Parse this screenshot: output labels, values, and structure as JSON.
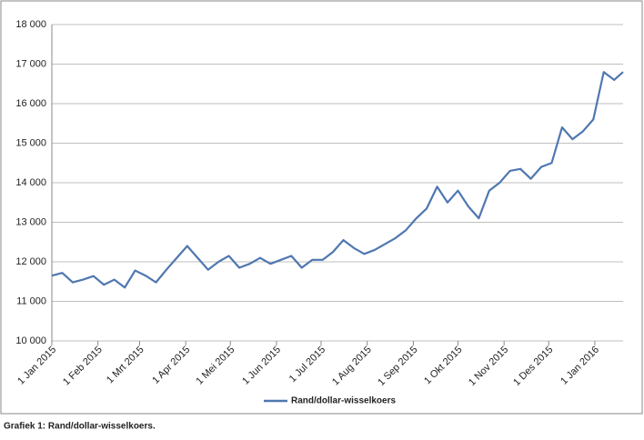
{
  "chart_data": {
    "type": "line",
    "x": [
      "2015-01-01",
      "2015-01-08",
      "2015-01-15",
      "2015-01-22",
      "2015-01-29",
      "2015-02-05",
      "2015-02-12",
      "2015-02-19",
      "2015-02-26",
      "2015-03-05",
      "2015-03-12",
      "2015-03-19",
      "2015-03-26",
      "2015-04-02",
      "2015-04-09",
      "2015-04-16",
      "2015-04-23",
      "2015-04-30",
      "2015-05-07",
      "2015-05-14",
      "2015-05-21",
      "2015-05-28",
      "2015-06-04",
      "2015-06-11",
      "2015-06-18",
      "2015-06-25",
      "2015-07-02",
      "2015-07-09",
      "2015-07-16",
      "2015-07-23",
      "2015-07-30",
      "2015-08-06",
      "2015-08-13",
      "2015-08-20",
      "2015-08-27",
      "2015-09-03",
      "2015-09-10",
      "2015-09-17",
      "2015-09-24",
      "2015-10-01",
      "2015-10-08",
      "2015-10-15",
      "2015-10-22",
      "2015-10-29",
      "2015-11-05",
      "2015-11-12",
      "2015-11-19",
      "2015-11-26",
      "2015-12-03",
      "2015-12-10",
      "2015-12-17",
      "2015-12-24",
      "2015-12-31",
      "2016-01-07",
      "2016-01-14",
      "2016-01-20"
    ],
    "series": [
      {
        "name": "Rand/dollar-wisselkoers",
        "color": "#4f77b0",
        "values": [
          11650,
          11720,
          11480,
          11550,
          11640,
          11420,
          11550,
          11350,
          11780,
          11650,
          11480,
          11800,
          12100,
          12400,
          12100,
          11800,
          12000,
          12150,
          11850,
          11950,
          12100,
          11950,
          12050,
          12150,
          11850,
          12050,
          12050,
          12250,
          12550,
          12350,
          12200,
          12300,
          12450,
          12600,
          12800,
          13100,
          13350,
          13900,
          13500,
          13800,
          13400,
          13100,
          13800,
          14000,
          14300,
          14350,
          14100,
          14400,
          14500,
          15400,
          15100,
          15300,
          15600,
          16800,
          16600,
          16800
        ]
      }
    ],
    "xlim": [
      "2015-01-01",
      "2016-01-20"
    ],
    "xticks": [
      {
        "value": "2015-01-01",
        "label": "1 Jan 2015"
      },
      {
        "value": "2015-02-01",
        "label": "1 Feb 2015"
      },
      {
        "value": "2015-03-01",
        "label": "1 Mrt 2015"
      },
      {
        "value": "2015-04-01",
        "label": "1 Apr 2015"
      },
      {
        "value": "2015-05-01",
        "label": "1 Mei 2015"
      },
      {
        "value": "2015-06-01",
        "label": "1 Jun 2015"
      },
      {
        "value": "2015-07-01",
        "label": "1 Jul 2015"
      },
      {
        "value": "2015-08-01",
        "label": "1 Aug 2015"
      },
      {
        "value": "2015-09-01",
        "label": "1 Sep 2015"
      },
      {
        "value": "2015-10-01",
        "label": "1 Okt 2015"
      },
      {
        "value": "2015-11-01",
        "label": "1 Nov 2015"
      },
      {
        "value": "2015-12-01",
        "label": "1 Des 2015"
      },
      {
        "value": "2016-01-01",
        "label": "1 Jan 2016"
      }
    ],
    "ylim": [
      10000,
      18000
    ],
    "yticks": [
      {
        "value": 10000,
        "label": "10 000"
      },
      {
        "value": 11000,
        "label": "11 000"
      },
      {
        "value": 12000,
        "label": "12 000"
      },
      {
        "value": 13000,
        "label": "13 000"
      },
      {
        "value": 14000,
        "label": "14 000"
      },
      {
        "value": 15000,
        "label": "15 000"
      },
      {
        "value": 16000,
        "label": "16 000"
      },
      {
        "value": 17000,
        "label": "17 000"
      },
      {
        "value": 18000,
        "label": "18 000"
      }
    ],
    "grid": true,
    "legend": "bottom"
  },
  "caption": "Grafiek 1: Rand/dollar-wisselkoers."
}
